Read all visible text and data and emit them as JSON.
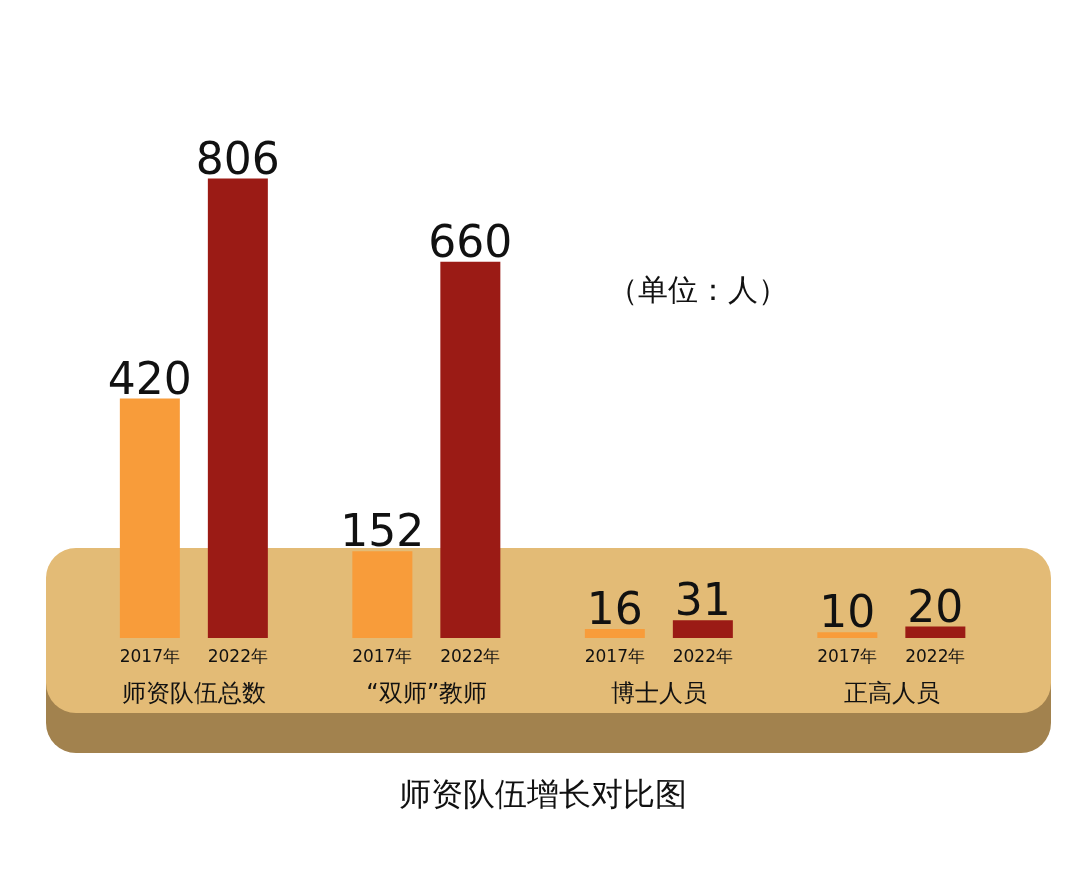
{
  "chart_data": {
    "type": "bar",
    "title": "师资队伍增长对比图",
    "categories": [
      "师资队伍总数",
      "“双师”教师",
      "博士人员",
      "正高人员"
    ],
    "series": [
      {
        "name": "2017年",
        "color": "#f89c3a",
        "values": [
          420,
          152,
          16,
          10
        ]
      },
      {
        "name": "2022年",
        "color": "#9b1b15",
        "values": [
          806,
          660,
          31,
          20
        ]
      }
    ],
    "data_labels": true,
    "annotations": [
      "（单位：人）"
    ]
  }
}
